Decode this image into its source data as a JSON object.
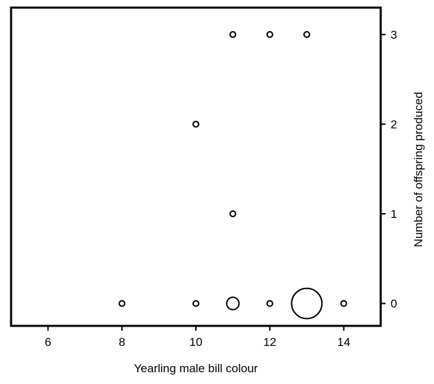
{
  "chart_data": {
    "type": "scatter",
    "title": "",
    "xlabel": "Yearling male bill colour",
    "ylabel": "Number of offspring produced",
    "xlim": [
      5,
      15
    ],
    "ylim": [
      -0.25,
      3.3
    ],
    "x_ticks": [
      6,
      8,
      10,
      12,
      14
    ],
    "y_ticks": [
      0,
      1,
      2,
      3
    ],
    "y_axis_side": "right",
    "grid": false,
    "legend": "none",
    "marker": "open-circle",
    "size_encoding": "marker area proportional to number of males",
    "points": [
      {
        "x": 11,
        "y": 3,
        "count": 1
      },
      {
        "x": 12,
        "y": 3,
        "count": 1
      },
      {
        "x": 13,
        "y": 3,
        "count": 1
      },
      {
        "x": 10,
        "y": 2,
        "count": 1
      },
      {
        "x": 11,
        "y": 1,
        "count": 1
      },
      {
        "x": 8,
        "y": 0,
        "count": 1
      },
      {
        "x": 10,
        "y": 0,
        "count": 1
      },
      {
        "x": 11,
        "y": 0,
        "count": 5
      },
      {
        "x": 12,
        "y": 0,
        "count": 1
      },
      {
        "x": 13,
        "y": 0,
        "count": 30
      },
      {
        "x": 14,
        "y": 0,
        "count": 1
      }
    ]
  },
  "colors": {
    "axis": "#000000",
    "marker_stroke": "#000000",
    "marker_fill": "#ffffff"
  }
}
